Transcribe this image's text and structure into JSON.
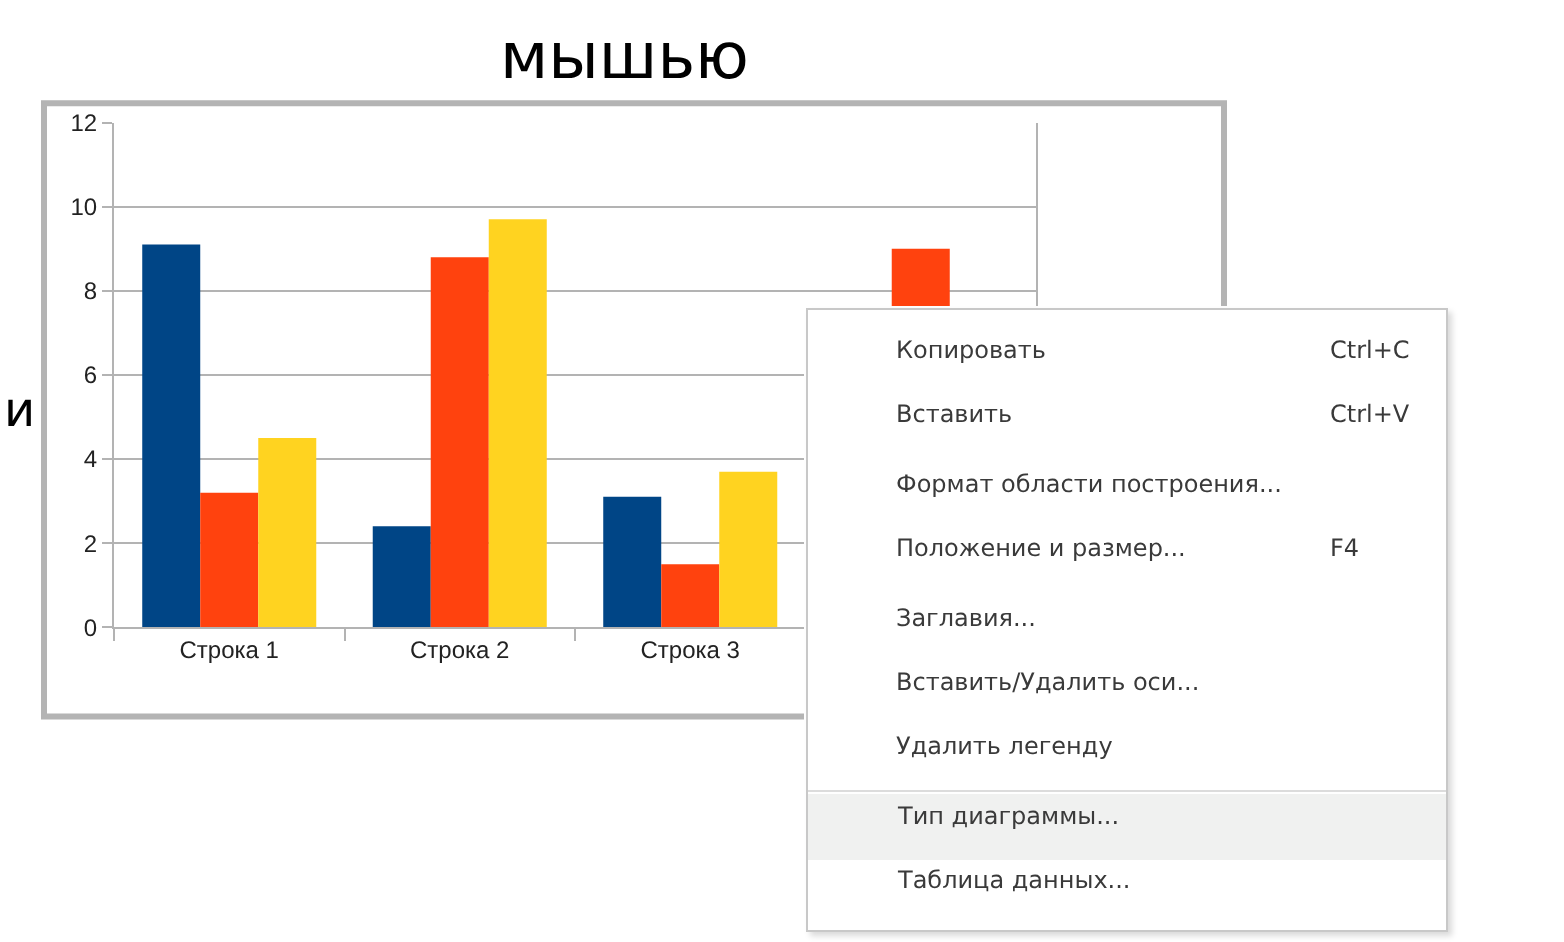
{
  "chart_data": {
    "type": "bar",
    "categories": [
      "Строка 1",
      "Строка 2",
      "Строка 3",
      null
    ],
    "series": [
      {
        "color": "#004586",
        "values": [
          9.1,
          2.4,
          3.1,
          null
        ]
      },
      {
        "color": "#ff420e",
        "values": [
          3.2,
          8.8,
          1.5,
          9.0
        ]
      },
      {
        "color": "#ffd320",
        "values": [
          4.5,
          9.7,
          3.7,
          null
        ]
      }
    ],
    "ylim": [
      0,
      12
    ],
    "yticks": [
      0,
      2,
      4,
      6,
      8,
      10,
      12
    ],
    "grid": "y",
    "legend": false,
    "annotations": [
      "мышью",
      "и",
      "Копировать\tCtrl+C",
      "Вставить\tCtrl+V",
      "Формат области построения...",
      "Положение и размер...\tF4",
      "Заглавия...",
      "Вставить/Удалить оси...",
      "Удалить легенду",
      "Тип диаграммы...",
      "Таблица данных..."
    ]
  }
}
